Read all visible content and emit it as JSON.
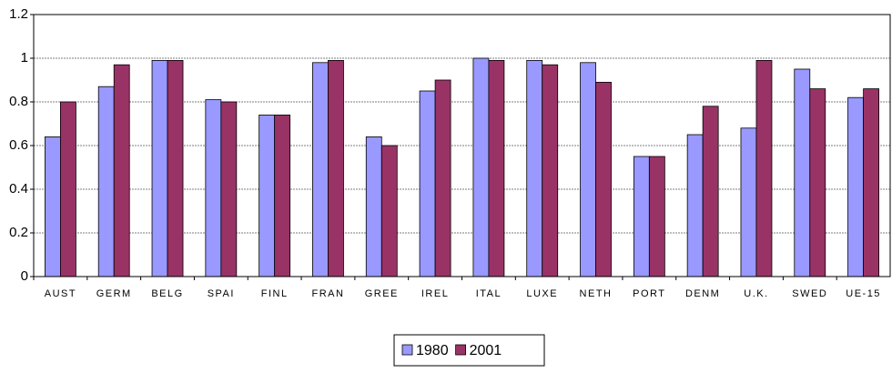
{
  "chart_data": {
    "type": "bar",
    "categories": [
      "AUST",
      "GERM",
      "BELG",
      "SPAI",
      "FINL",
      "FRAN",
      "GREE",
      "IREL",
      "ITAL",
      "LUXE",
      "NETH",
      "PORT",
      "DENM",
      "U.K.",
      "SWED",
      "UE-15"
    ],
    "series": [
      {
        "name": "1980",
        "color": "#9999ff",
        "values": [
          0.64,
          0.87,
          0.99,
          0.81,
          0.74,
          0.98,
          0.64,
          0.85,
          1.0,
          0.99,
          0.98,
          0.55,
          0.65,
          0.68,
          0.95,
          0.82
        ]
      },
      {
        "name": "2001",
        "color": "#993366",
        "values": [
          0.8,
          0.97,
          0.99,
          0.8,
          0.74,
          0.99,
          0.6,
          0.9,
          0.99,
          0.97,
          0.89,
          0.55,
          0.78,
          0.99,
          0.86,
          0.86
        ]
      }
    ],
    "ylim": [
      0,
      1.2
    ],
    "yticks": [
      0,
      0.2,
      0.4,
      0.6,
      0.8,
      1,
      1.2
    ],
    "grid": true,
    "legend": "bottom"
  }
}
